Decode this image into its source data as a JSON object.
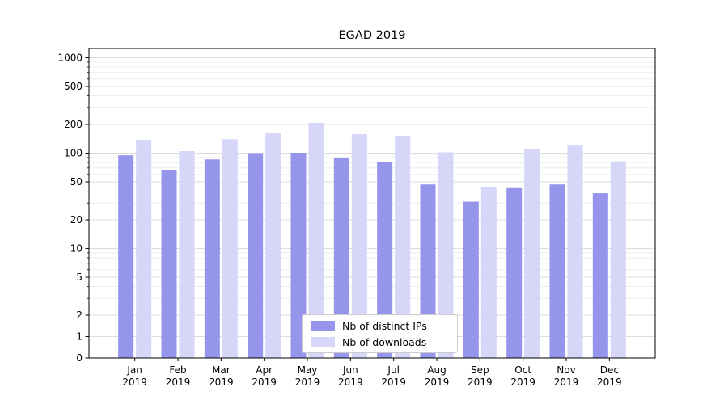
{
  "title": "EGAD 2019",
  "chart_data": {
    "type": "bar",
    "title": "EGAD 2019",
    "xlabel": "",
    "ylabel": "",
    "yscale": "symlog",
    "ylim": [
      0,
      1250
    ],
    "yticks": [
      0,
      1,
      2,
      5,
      10,
      20,
      50,
      100,
      200,
      500,
      1000
    ],
    "grid": "both",
    "legend_position": "lower center",
    "categories": [
      "Jan",
      "Feb",
      "Mar",
      "Apr",
      "May",
      "Jun",
      "Jul",
      "Aug",
      "Sep",
      "Oct",
      "Nov",
      "Dec"
    ],
    "year_label": "2019",
    "series": [
      {
        "name": "Nb of distinct IPs",
        "color": "#9595ec",
        "values": [
          95,
          66,
          86,
          100,
          101,
          90,
          81,
          47,
          31,
          43,
          47,
          38
        ]
      },
      {
        "name": "Nb of downloads",
        "color": "#d6d6f8",
        "values": [
          138,
          105,
          140,
          163,
          208,
          158,
          152,
          102,
          44,
          110,
          120,
          82
        ]
      }
    ],
    "colors": {
      "grid_major": "#dcdcdc",
      "grid_minor": "#ededed",
      "axis": "#000000",
      "tick_label": "#000000",
      "legend_border": "#cccccc",
      "background": "#ffffff"
    }
  }
}
